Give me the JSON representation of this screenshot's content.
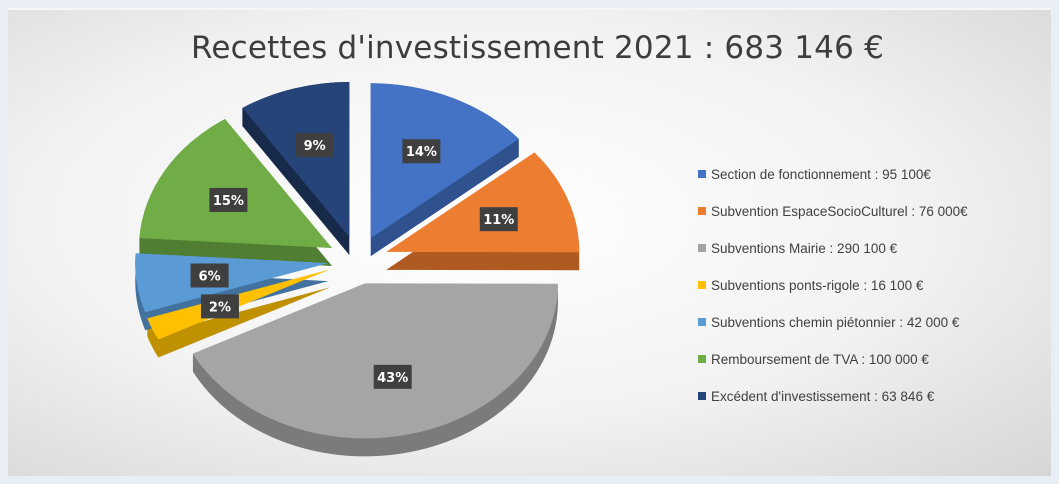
{
  "chart_data": {
    "type": "pie",
    "title": "Recettes d'investissement 2021 : 683 146 €",
    "slices": [
      {
        "label": "Section de fonctionnement : 95 100€",
        "percent_label": "14%",
        "value": 95100,
        "color": "#4472c4",
        "dark": "#2f528f"
      },
      {
        "label": "Subvention EspaceSocioCulturel : 76 000€",
        "percent_label": "11%",
        "value": 76000,
        "color": "#ed7d31",
        "dark": "#ae5a21"
      },
      {
        "label": "Subventions Mairie : 290 100 €",
        "percent_label": "43%",
        "value": 290100,
        "color": "#a5a5a5",
        "dark": "#7b7b7b"
      },
      {
        "label": "Subventions ponts-rigole : 16 100 €",
        "percent_label": "2%",
        "value": 16100,
        "color": "#ffc000",
        "dark": "#bf9000"
      },
      {
        "label": "Subventions chemin piétonnier : 42 000 €",
        "percent_label": "6%",
        "value": 42000,
        "color": "#5b9bd5",
        "dark": "#41719c"
      },
      {
        "label": "Remboursement de TVA : 100 000 €",
        "percent_label": "15%",
        "value": 100000,
        "color": "#70ad47",
        "dark": "#507e32"
      },
      {
        "label": "Excédent d'investissement : 63 846 €",
        "percent_label": "9%",
        "value": 63846,
        "color": "#264478",
        "dark": "#172a4a"
      }
    ],
    "legend_position": "right"
  }
}
